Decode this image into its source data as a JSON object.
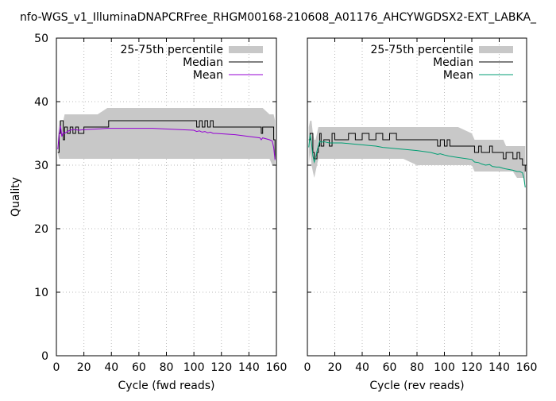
{
  "title": "nfo-WGS_v1_IlluminaDNAPCRFree_RHGM00168-210608_A01176_AHCYWGDSX2-EXT_LABKA_",
  "legend": {
    "band_label": "25-75th percentile",
    "median_label": "Median",
    "mean_label": "Mean"
  },
  "colors": {
    "band": "#c8c8c8",
    "median": "#000000",
    "mean_fwd": "#9400d3",
    "mean_rev": "#009e73"
  },
  "chart_data": [
    {
      "type": "line",
      "name": "fwd",
      "xlabel": "Cycle (fwd reads)",
      "ylabel": "Quality",
      "xlim": [
        0,
        160
      ],
      "ylim": [
        0,
        50
      ],
      "xticks": [
        0,
        20,
        40,
        60,
        80,
        100,
        120,
        140,
        160
      ],
      "yticks": [
        0,
        10,
        20,
        30,
        40,
        50
      ],
      "legend_position": "top-right",
      "x": [
        1,
        2,
        3,
        4,
        5,
        6,
        8,
        10,
        12,
        14,
        16,
        20,
        30,
        37,
        38,
        50,
        70,
        90,
        100,
        102,
        104,
        106,
        108,
        110,
        112,
        114,
        116,
        130,
        148,
        149,
        150,
        155,
        157,
        158,
        159
      ],
      "median": [
        32,
        35,
        37,
        37,
        34,
        36,
        35,
        36,
        35,
        36,
        35,
        36,
        36,
        36,
        37,
        37,
        37,
        37,
        37,
        36,
        37,
        36,
        37,
        36,
        37,
        36,
        36,
        36,
        36,
        35,
        36,
        36,
        36,
        34,
        31
      ],
      "mean": [
        32.5,
        34.8,
        36.2,
        34.5,
        35.2,
        35.0,
        35.3,
        35.5,
        35.6,
        35.6,
        35.5,
        35.6,
        35.7,
        35.8,
        35.8,
        35.8,
        35.8,
        35.6,
        35.5,
        35.3,
        35.4,
        35.2,
        35.3,
        35.1,
        35.2,
        35.0,
        35.0,
        34.8,
        34.3,
        34.0,
        34.3,
        34.0,
        33.8,
        32.8,
        30.8
      ],
      "q25": [
        32,
        31,
        31,
        31,
        31,
        31,
        31,
        31,
        31,
        31,
        31,
        31,
        31,
        31,
        31,
        31,
        31,
        31,
        31,
        31,
        31,
        31,
        31,
        31,
        31,
        31,
        31,
        31,
        31,
        31,
        31,
        31,
        30,
        30,
        30
      ],
      "q75": [
        34,
        37,
        37,
        37,
        37,
        38,
        38,
        38,
        38,
        38,
        38,
        38,
        38,
        39,
        39,
        39,
        39,
        39,
        39,
        39,
        39,
        39,
        39,
        39,
        39,
        39,
        39,
        39,
        39,
        39,
        39,
        38,
        38,
        38,
        37
      ]
    },
    {
      "type": "line",
      "name": "rev",
      "xlabel": "Cycle (rev reads)",
      "ylabel": "",
      "xlim": [
        0,
        160
      ],
      "ylim": [
        0,
        50
      ],
      "xticks": [
        0,
        20,
        40,
        60,
        80,
        100,
        120,
        140,
        160
      ],
      "yticks": [
        0,
        10,
        20,
        30,
        40,
        50
      ],
      "legend_position": "top-right",
      "x": [
        1,
        2,
        3,
        4,
        5,
        6,
        7,
        8,
        9,
        10,
        12,
        14,
        16,
        18,
        20,
        25,
        30,
        35,
        40,
        45,
        50,
        55,
        60,
        65,
        70,
        80,
        90,
        95,
        97,
        100,
        102,
        104,
        110,
        120,
        122,
        125,
        127,
        130,
        133,
        135,
        138,
        140,
        143,
        145,
        150,
        153,
        155,
        157,
        158,
        159
      ],
      "median": [
        34,
        35,
        35,
        32,
        31,
        31,
        32,
        33,
        35,
        33,
        34,
        34,
        33,
        35,
        34,
        34,
        35,
        34,
        35,
        34,
        35,
        34,
        35,
        34,
        34,
        34,
        34,
        33,
        34,
        33,
        34,
        33,
        33,
        33,
        32,
        33,
        32,
        32,
        33,
        32,
        32,
        32,
        31,
        32,
        31,
        32,
        31,
        30,
        30,
        29
      ],
      "mean": [
        32.8,
        34.8,
        33.5,
        31.5,
        30.5,
        31.2,
        32.2,
        33.0,
        33.8,
        33.6,
        33.7,
        33.6,
        33.5,
        33.5,
        33.5,
        33.5,
        33.4,
        33.3,
        33.2,
        33.1,
        33.0,
        32.8,
        32.7,
        32.6,
        32.5,
        32.3,
        32.0,
        31.7,
        31.8,
        31.6,
        31.5,
        31.4,
        31.2,
        30.9,
        30.5,
        30.4,
        30.2,
        30.0,
        30.1,
        29.8,
        29.7,
        29.7,
        29.5,
        29.4,
        29.2,
        29.0,
        29.0,
        28.8,
        28.0,
        26.5
      ],
      "q25": [
        30,
        32,
        30,
        29,
        28,
        29,
        30,
        31,
        31,
        31,
        31,
        31,
        31,
        31,
        31,
        31,
        31,
        31,
        31,
        31,
        31,
        31,
        31,
        31,
        31,
        30,
        30,
        30,
        30,
        30,
        30,
        30,
        30,
        30,
        29,
        29,
        29,
        29,
        29,
        29,
        29,
        29,
        29,
        29,
        29,
        28,
        28,
        28,
        28,
        27
      ],
      "q75": [
        36,
        37,
        37,
        35,
        34,
        34,
        35,
        36,
        36,
        36,
        36,
        36,
        36,
        36,
        36,
        36,
        36,
        36,
        36,
        36,
        36,
        36,
        36,
        36,
        36,
        36,
        36,
        36,
        36,
        36,
        36,
        36,
        36,
        35,
        34,
        34,
        34,
        34,
        34,
        34,
        34,
        34,
        34,
        33,
        33,
        33,
        33,
        33,
        33,
        33
      ]
    }
  ]
}
